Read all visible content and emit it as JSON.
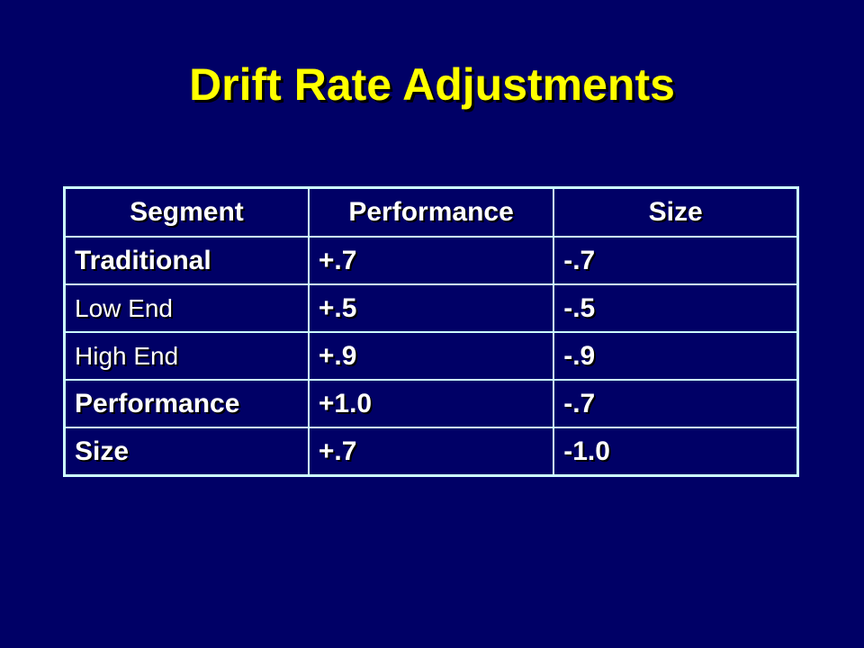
{
  "slide": {
    "title": "Drift Rate Adjustments"
  },
  "table": {
    "headers": [
      "Segment",
      "Performance",
      "Size"
    ],
    "rows": [
      {
        "segment": "Traditional",
        "performance": "+.7",
        "size": "-.7"
      },
      {
        "segment": "Low End",
        "performance": "+.5",
        "size": "-.5"
      },
      {
        "segment": "High End",
        "performance": "+.9",
        "size": "-.9"
      },
      {
        "segment": "Performance",
        "performance": "+1.0",
        "size": "-.7"
      },
      {
        "segment": "Size",
        "performance": "+.7",
        "size": "-1.0"
      }
    ]
  },
  "colors": {
    "background": "#000066",
    "title": "#ffff00",
    "text": "#ffffff",
    "border": "#ccffff"
  }
}
